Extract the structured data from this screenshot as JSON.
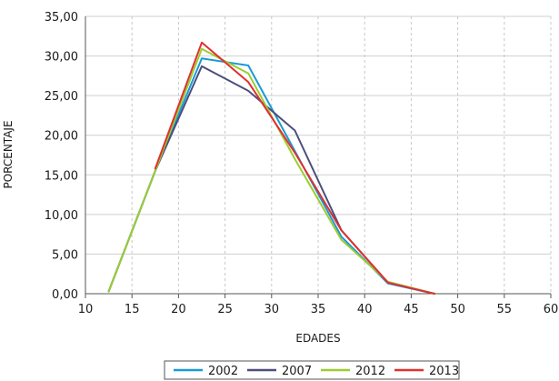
{
  "chart_data": {
    "type": "line",
    "xlabel": "EDADES",
    "ylabel": "PORCENTAJE",
    "xlim": [
      10,
      60
    ],
    "ylim": [
      0,
      35
    ],
    "x_ticks": [
      "10",
      "15",
      "20",
      "25",
      "30",
      "35",
      "40",
      "45",
      "50",
      "55",
      "60"
    ],
    "y_ticks": [
      "0,00",
      "5,00",
      "10,00",
      "15,00",
      "20,00",
      "25,00",
      "30,00",
      "35,00"
    ],
    "grid": {
      "vertical": "dashed",
      "horizontal": "solid"
    },
    "legend_position": "bottom",
    "series": [
      {
        "name": "2002",
        "color": "#1a9ad6",
        "points": [
          [
            12.5,
            0.3
          ],
          [
            17.5,
            15.5
          ],
          [
            22.5,
            29.7
          ],
          [
            27.5,
            28.8
          ],
          [
            32.5,
            18.0
          ],
          [
            37.5,
            7.2
          ],
          [
            42.5,
            1.3
          ],
          [
            47.5,
            0.0
          ]
        ]
      },
      {
        "name": "2007",
        "color": "#4a4f7d",
        "points": [
          [
            12.5,
            0.3
          ],
          [
            17.5,
            15.5
          ],
          [
            22.5,
            28.7
          ],
          [
            27.5,
            25.6
          ],
          [
            32.5,
            20.6
          ],
          [
            37.5,
            8.0
          ],
          [
            42.5,
            1.4
          ],
          [
            47.5,
            0.0
          ]
        ]
      },
      {
        "name": "2012",
        "color": "#9acd32",
        "points": [
          [
            12.5,
            0.3
          ],
          [
            17.5,
            15.5
          ],
          [
            22.5,
            30.9
          ],
          [
            27.5,
            27.8
          ],
          [
            32.5,
            17.0
          ],
          [
            37.5,
            6.8
          ],
          [
            42.5,
            1.5
          ],
          [
            47.5,
            0.0
          ]
        ]
      },
      {
        "name": "2013",
        "color": "#e03030",
        "points": [
          [
            17.5,
            15.8
          ],
          [
            22.5,
            31.7
          ],
          [
            27.5,
            26.7
          ],
          [
            32.5,
            17.8
          ],
          [
            37.5,
            8.0
          ],
          [
            42.5,
            1.4
          ],
          [
            47.5,
            0.0
          ]
        ]
      }
    ]
  }
}
